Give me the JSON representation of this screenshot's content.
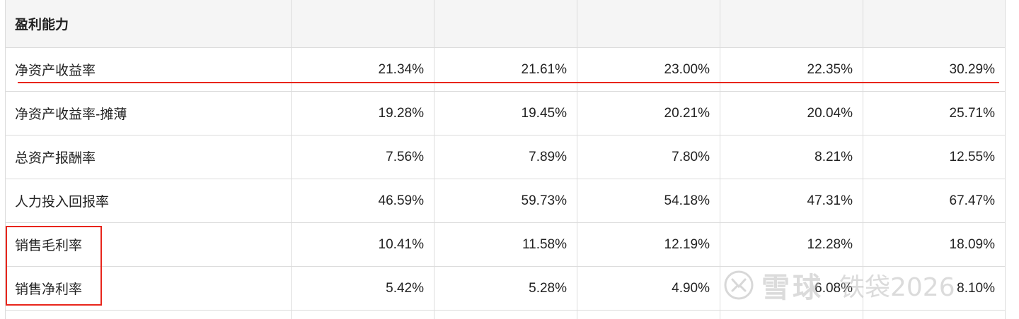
{
  "section_title": "盈利能力",
  "rows": [
    {
      "label": "净资产收益率",
      "values": [
        "21.34%",
        "21.61%",
        "23.00%",
        "22.35%",
        "30.29%"
      ]
    },
    {
      "label": "净资产收益率-摊薄",
      "values": [
        "19.28%",
        "19.45%",
        "20.21%",
        "20.04%",
        "25.71%"
      ]
    },
    {
      "label": "总资产报酬率",
      "values": [
        "7.56%",
        "7.89%",
        "7.80%",
        "8.21%",
        "12.55%"
      ]
    },
    {
      "label": "人力投入回报率",
      "values": [
        "46.59%",
        "59.73%",
        "54.18%",
        "47.31%",
        "67.47%"
      ]
    },
    {
      "label": "销售毛利率",
      "values": [
        "10.41%",
        "11.58%",
        "12.19%",
        "12.28%",
        "18.09%"
      ]
    },
    {
      "label": "销售净利率",
      "values": [
        "5.42%",
        "5.28%",
        "4.90%",
        "6.08%",
        "8.10%"
      ]
    }
  ],
  "watermark": {
    "brand": "雪球",
    "user": "铁袋2026"
  },
  "colors": {
    "annotation": "#e8251b",
    "header_bg": "#f5f5f5",
    "border": "#dcdcdc"
  }
}
